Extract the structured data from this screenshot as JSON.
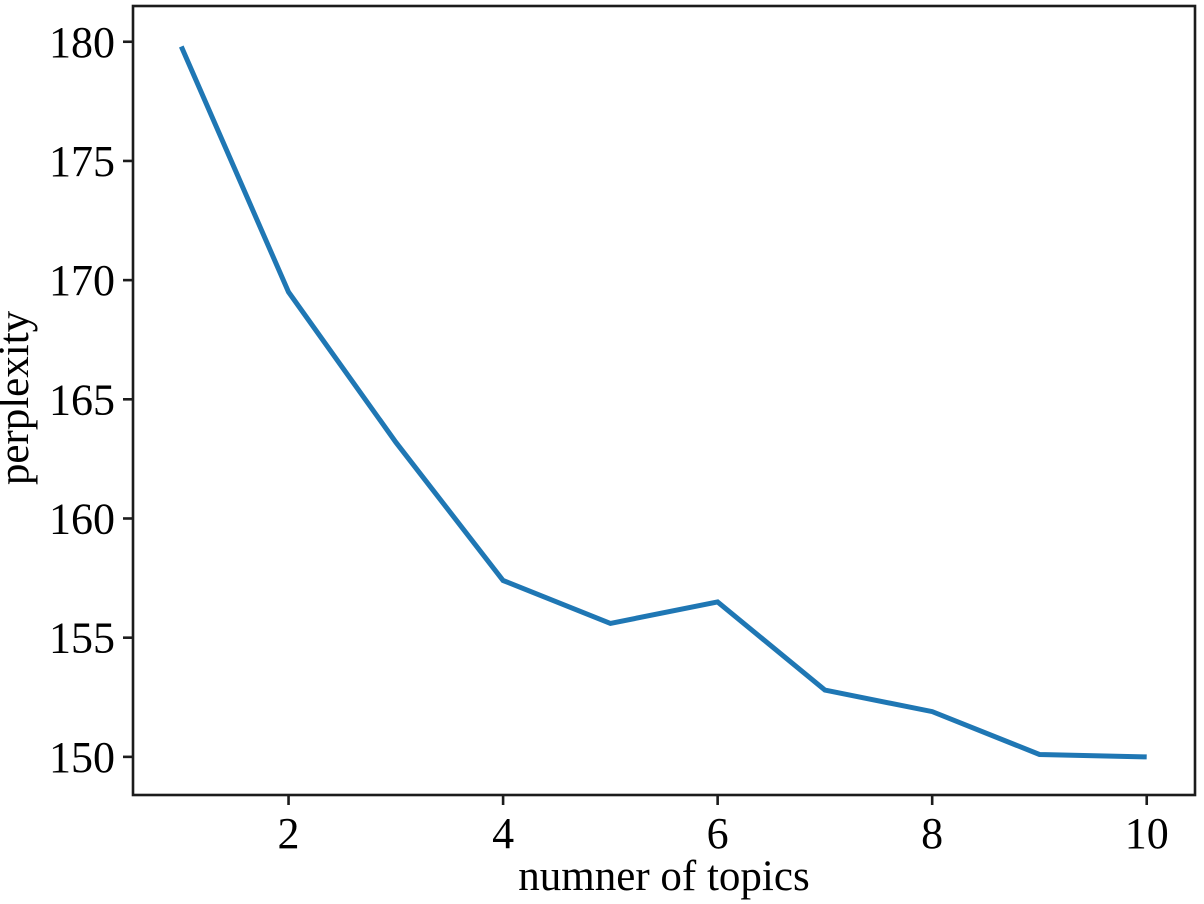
{
  "figure": {
    "background_color": "#ffffff",
    "axis_color": "#1c1c1c",
    "text_color": "#000000",
    "line_color": "#1f77b4"
  },
  "chart_data": {
    "type": "line",
    "title": "",
    "xlabel": "numner of topics",
    "ylabel": "perplexity",
    "x": [
      1,
      2,
      3,
      4,
      5,
      6,
      7,
      8,
      9,
      10
    ],
    "y": [
      179.8,
      169.5,
      163.2,
      157.4,
      155.6,
      156.5,
      152.8,
      151.9,
      150.1,
      150.0
    ],
    "series_name": "perplexity",
    "xticks": [
      2,
      4,
      6,
      8,
      10
    ],
    "yticks": [
      150,
      155,
      160,
      165,
      170,
      175,
      180
    ],
    "xlim": [
      0.55,
      10.45
    ],
    "ylim": [
      148.4,
      181.5
    ],
    "grid": false,
    "legend": "none",
    "markers": "none"
  }
}
